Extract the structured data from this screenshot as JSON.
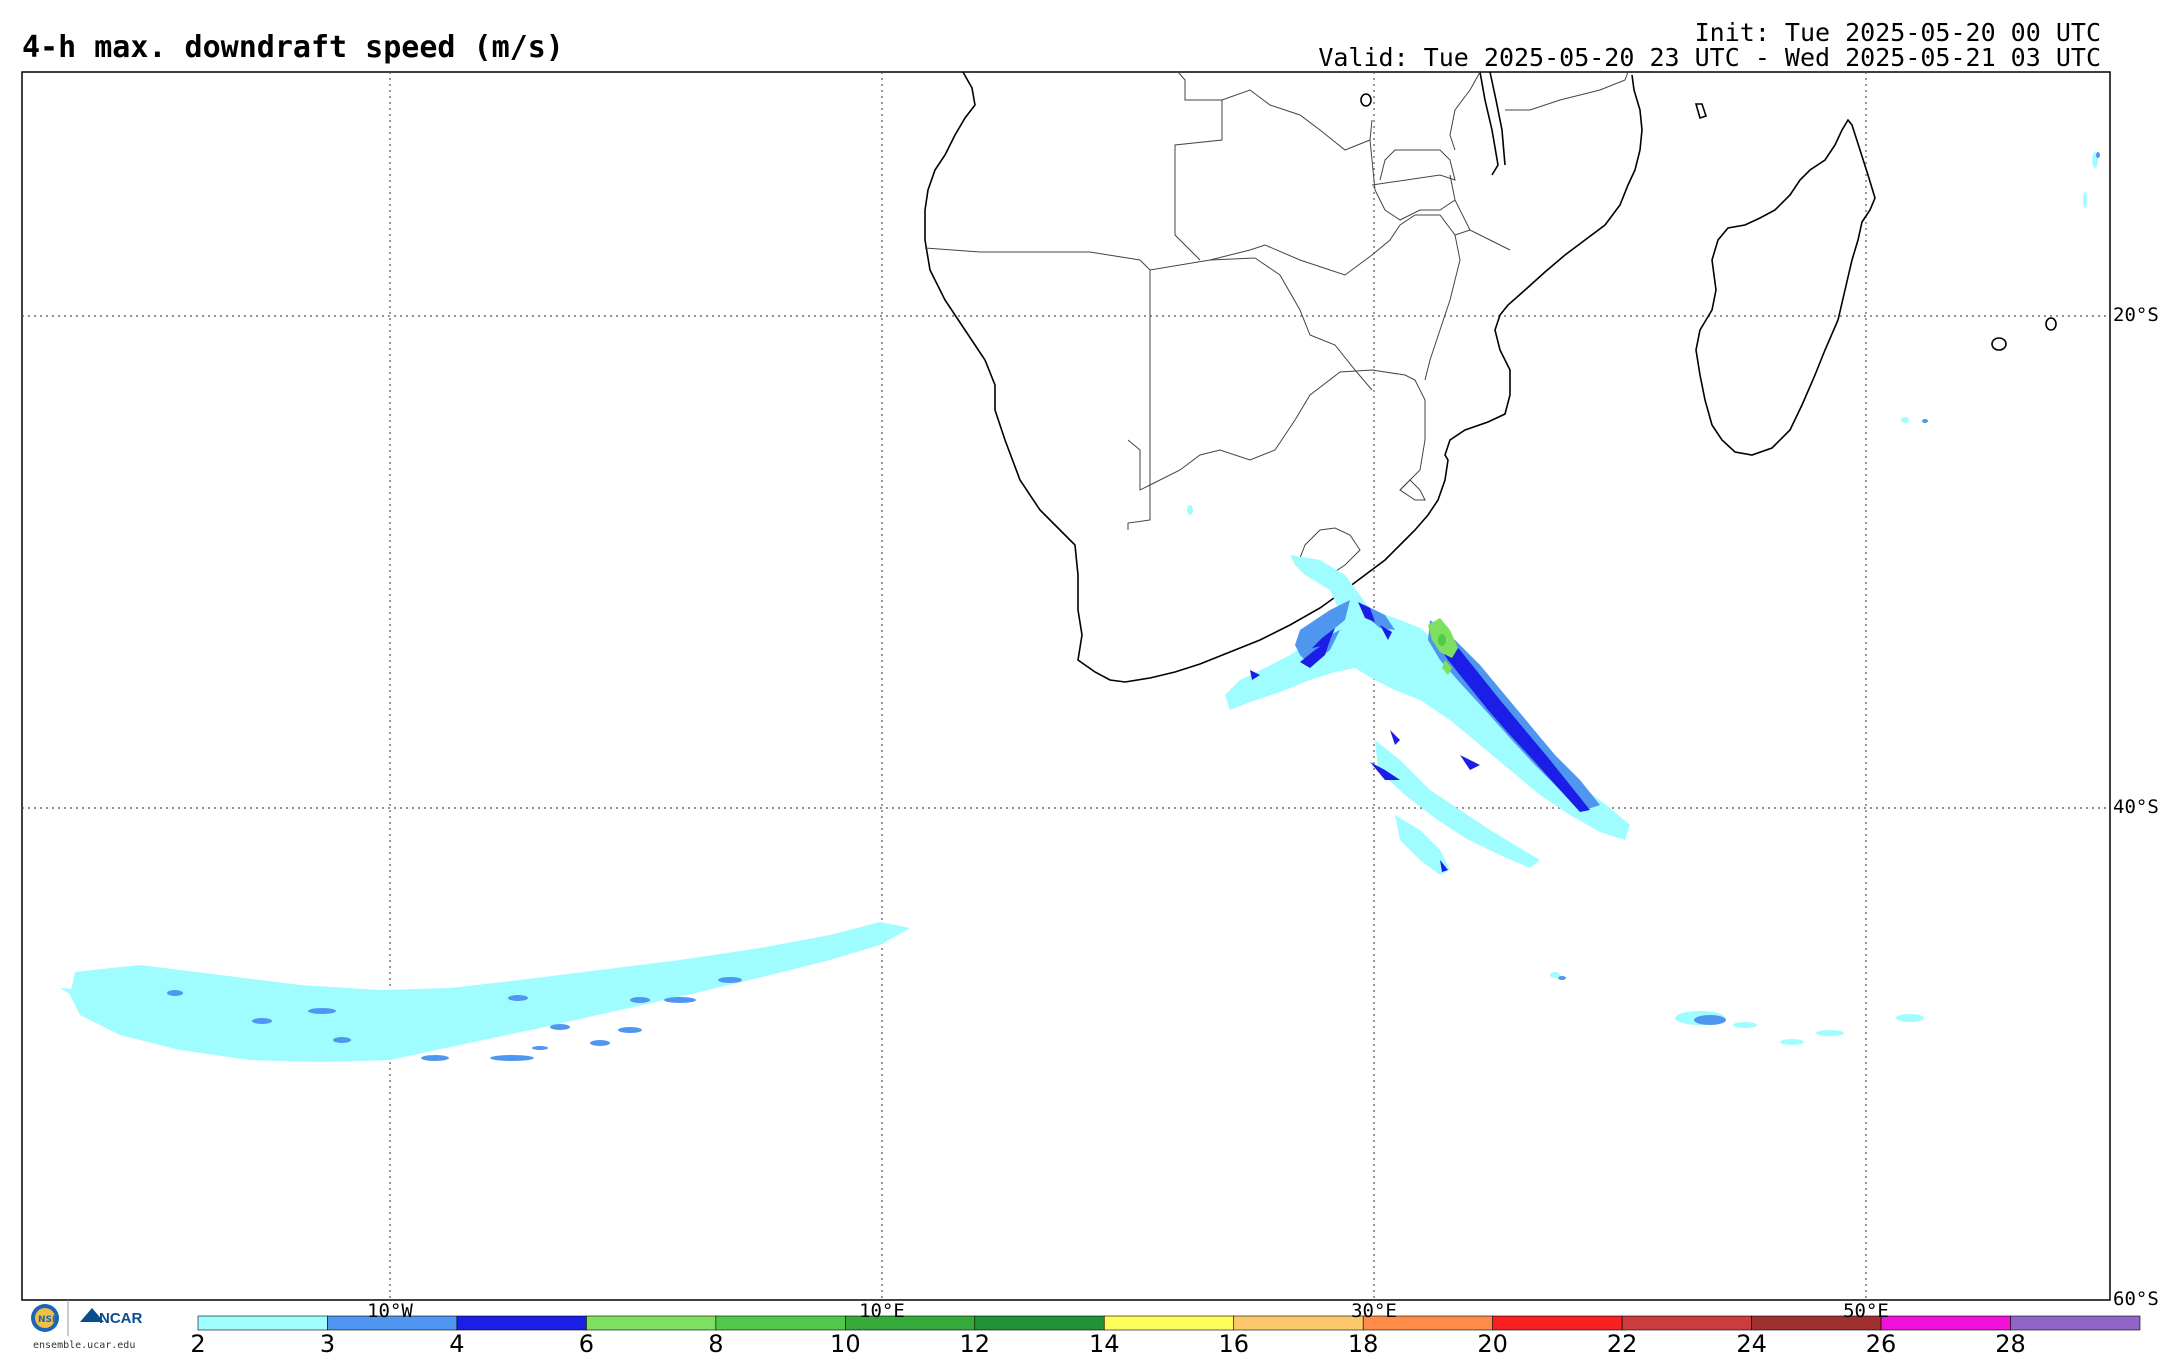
{
  "header": {
    "title": "4-h max. downdraft speed (m/s)",
    "init": "Init: Tue 2025-05-20 00 UTC",
    "valid": "Valid: Tue 2025-05-20 23 UTC - Wed 2025-05-21 03 UTC"
  },
  "grid": {
    "lat_labels": [
      "20°S",
      "40°S",
      "60°S"
    ],
    "lon_labels": [
      "10°W",
      "10°E",
      "30°E",
      "50°E"
    ]
  },
  "colorbar": {
    "ticks": [
      "2",
      "3",
      "4",
      "6",
      "8",
      "10",
      "12",
      "14",
      "16",
      "18",
      "20",
      "22",
      "24",
      "26",
      "28"
    ],
    "colors": [
      "#9ffcff",
      "#4f96f0",
      "#1a1ee6",
      "#7ee060",
      "#50c84a",
      "#35aa3a",
      "#22923a",
      "#fcfc5a",
      "#fcc86a",
      "#fc8c48",
      "#f82020",
      "#cc3c3c",
      "#a03030",
      "#f012d8",
      "#9164c8"
    ]
  },
  "branding": {
    "logo_text": "NCAR",
    "site": "ensemble.ucar.edu"
  },
  "colors": {
    "frame": "#000000",
    "grid": "#555555"
  }
}
